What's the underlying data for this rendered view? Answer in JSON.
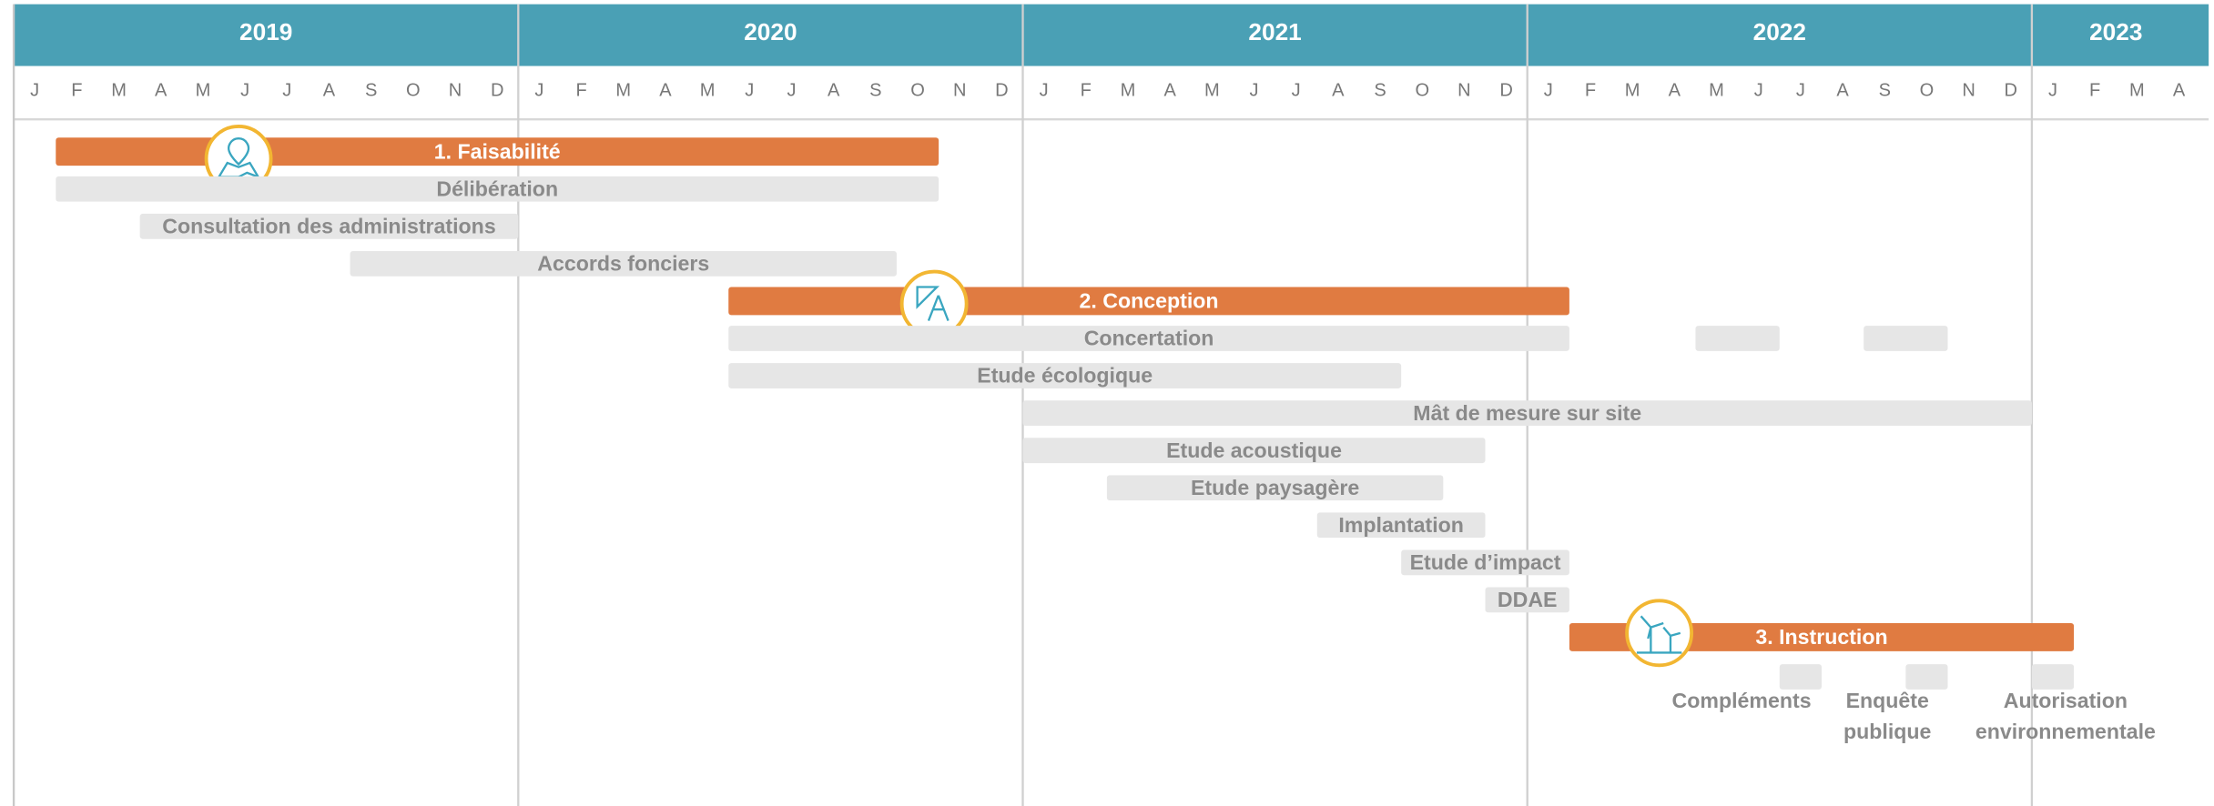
{
  "chart_data": {
    "type": "gantt",
    "header_color": "#4aa0b5",
    "phase_color": "#e07b41",
    "task_color": "#e6e6e6",
    "timeline": {
      "years": [
        {
          "year": "2019",
          "months": [
            "J",
            "F",
            "M",
            "A",
            "M",
            "J",
            "J",
            "A",
            "S",
            "O",
            "N",
            "D"
          ]
        },
        {
          "year": "2020",
          "months": [
            "J",
            "F",
            "M",
            "A",
            "M",
            "J",
            "J",
            "A",
            "S",
            "O",
            "N",
            "D"
          ]
        },
        {
          "year": "2021",
          "months": [
            "J",
            "F",
            "M",
            "A",
            "M",
            "J",
            "J",
            "A",
            "S",
            "O",
            "N",
            "D"
          ]
        },
        {
          "year": "2022",
          "months": [
            "J",
            "F",
            "M",
            "A",
            "M",
            "J",
            "J",
            "A",
            "S",
            "O",
            "N",
            "D"
          ]
        },
        {
          "year": "2023",
          "months": [
            "J",
            "F",
            "M",
            "A"
          ]
        }
      ]
    },
    "tasks": [
      {
        "label": "1. Faisabilité",
        "phase": true,
        "start": "2019-02",
        "end": "2020-11"
      },
      {
        "label": "Délibération",
        "start": "2019-02",
        "end": "2020-11"
      },
      {
        "label": "Consultation des administrations",
        "start": "2019-04",
        "end": "2020-01"
      },
      {
        "label": "Accords fonciers",
        "start": "2019-09",
        "end": "2020-10"
      },
      {
        "label": "2. Conception",
        "phase": true,
        "start": "2020-06",
        "end": "2022-02"
      },
      {
        "label": "Concertation",
        "start": "2020-06",
        "end": "2022-02",
        "segments": [
          {
            "start": "2022-05",
            "end": "2022-07"
          },
          {
            "start": "2022-09",
            "end": "2022-11"
          }
        ]
      },
      {
        "label": "Etude écologique",
        "start": "2020-06",
        "end": "2021-10"
      },
      {
        "label": "Mât de mesure sur site",
        "start": "2021-01",
        "end": "2023-01"
      },
      {
        "label": "Etude acoustique",
        "start": "2021-01",
        "end": "2021-12"
      },
      {
        "label": "Etude paysagère",
        "start": "2021-03",
        "end": "2021-11"
      },
      {
        "label": "Implantation",
        "start": "2021-08",
        "end": "2021-12"
      },
      {
        "label": "Etude d’impact",
        "start": "2021-10",
        "end": "2022-02"
      },
      {
        "label": "DDAE",
        "start": "2021-12",
        "end": "2022-02"
      },
      {
        "label": "3. Instruction",
        "phase": true,
        "start": "2022-02",
        "end": "2023-02"
      },
      {
        "label_lines": [
          "Compléments"
        ],
        "start": "2022-07",
        "end": "2022-08"
      },
      {
        "label_lines": [
          "Enquête",
          "publique"
        ],
        "start": "2022-10",
        "end": "2022-11"
      },
      {
        "label_lines": [
          "Autorisation",
          "environnementale"
        ],
        "start": "2023-01",
        "end": "2023-02"
      }
    ]
  }
}
